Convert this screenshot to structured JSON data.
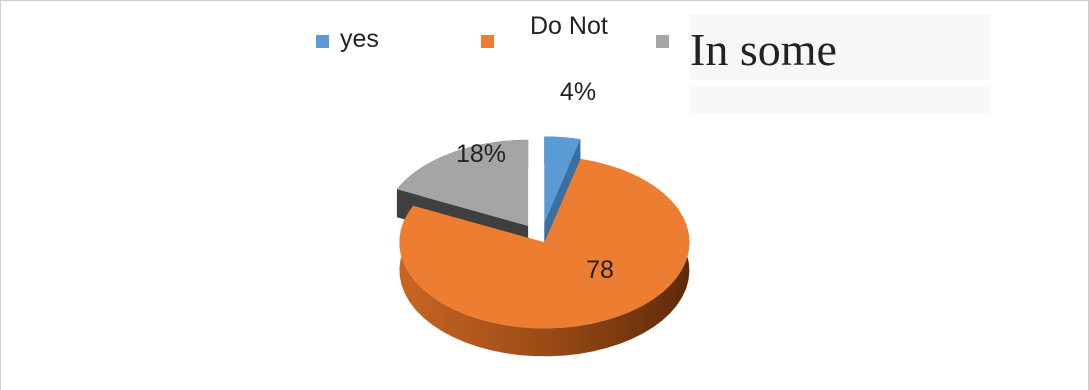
{
  "chart_data": {
    "type": "pie",
    "categories": [
      "yes",
      "Do Not",
      "In some"
    ],
    "values": [
      4,
      78,
      18
    ],
    "data_labels": [
      "4%",
      "78",
      "18%"
    ],
    "colors": [
      "#5b9bd5",
      "#ed7d31",
      "#a5a5a5"
    ],
    "side_colors": [
      "#3a6fa3",
      "#a04e14",
      "#3f3f3f"
    ],
    "legend_position": "top",
    "exploded": true,
    "three_d": true
  },
  "legend": {
    "items": [
      {
        "label": "yes",
        "color": "#5b9bd5"
      },
      {
        "label": "Do Not",
        "color": "#ed7d31"
      },
      {
        "label": "",
        "color": "#a5a5a5"
      }
    ]
  },
  "overlay": {
    "text": "In some"
  }
}
